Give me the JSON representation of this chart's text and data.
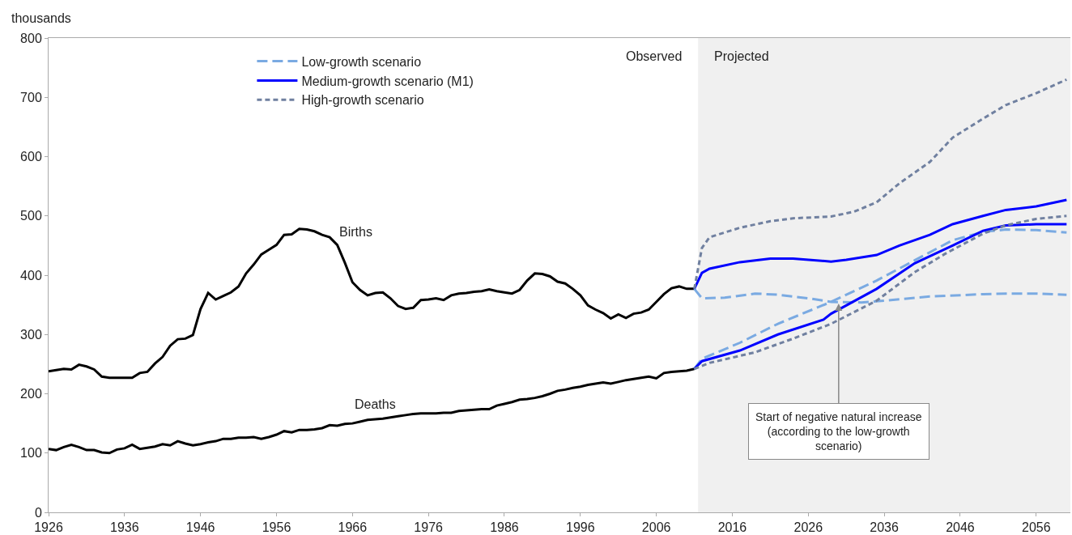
{
  "chart_data": {
    "type": "line",
    "ylabel": "thousands",
    "xlim": [
      1926,
      2060.5
    ],
    "xticks": [
      1926,
      1936,
      1946,
      1956,
      1966,
      1976,
      1986,
      1996,
      2006,
      2016,
      2026,
      2036,
      2046,
      2056
    ],
    "ylim": [
      0,
      800
    ],
    "yticks": [
      0,
      100,
      200,
      300,
      400,
      500,
      600,
      700,
      800
    ],
    "grid": false,
    "legend": "top left",
    "series": [
      {
        "name": "Births",
        "color": "#000000",
        "line_style": "solid",
        "x": [
          1926,
          1927,
          1928,
          1929,
          1930,
          1931,
          1932,
          1933,
          1934,
          1935,
          1936,
          1937,
          1938,
          1939,
          1940,
          1941,
          1942,
          1943,
          1944,
          1945,
          1946,
          1947,
          1948,
          1949,
          1950,
          1951,
          1952,
          1953,
          1954,
          1955,
          1956,
          1957,
          1958,
          1959,
          1960,
          1961,
          1962,
          1963,
          1964,
          1965,
          1966,
          1967,
          1968,
          1969,
          1970,
          1971,
          1972,
          1973,
          1974,
          1975,
          1976,
          1977,
          1978,
          1979,
          1980,
          1981,
          1982,
          1983,
          1984,
          1985,
          1986,
          1987,
          1988,
          1989,
          1990,
          1991,
          1992,
          1993,
          1994,
          1995,
          1996,
          1997,
          1998,
          1999,
          2000,
          2001,
          2002,
          2003,
          2004,
          2005,
          2006,
          2007,
          2008,
          2009,
          2010,
          2011
        ],
        "values": [
          238,
          240,
          242,
          241,
          249,
          246,
          241,
          229,
          227,
          227,
          227,
          227,
          235,
          237,
          251,
          262,
          281,
          292,
          293,
          299,
          343,
          370,
          359,
          365,
          371,
          381,
          403,
          418,
          435,
          443,
          451,
          468,
          469,
          478,
          477,
          474,
          468,
          464,
          451,
          421,
          388,
          375,
          366,
          370,
          371,
          361,
          348,
          343,
          345,
          358,
          359,
          361,
          358,
          366,
          369,
          370,
          372,
          373,
          376,
          373,
          371,
          369,
          375,
          391,
          403,
          402,
          398,
          389,
          386,
          377,
          366,
          349,
          342,
          336,
          327,
          334,
          328,
          335,
          337,
          342,
          355,
          368,
          378,
          381,
          377,
          377
        ]
      },
      {
        "name": "Deaths",
        "color": "#000000",
        "line_style": "solid",
        "x": [
          1926,
          1927,
          1928,
          1929,
          1930,
          1931,
          1932,
          1933,
          1934,
          1935,
          1936,
          1937,
          1938,
          1939,
          1940,
          1941,
          1942,
          1943,
          1944,
          1945,
          1946,
          1947,
          1948,
          1949,
          1950,
          1951,
          1952,
          1953,
          1954,
          1955,
          1956,
          1957,
          1958,
          1959,
          1960,
          1961,
          1962,
          1963,
          1964,
          1965,
          1966,
          1967,
          1968,
          1969,
          1970,
          1971,
          1972,
          1973,
          1974,
          1975,
          1976,
          1977,
          1978,
          1979,
          1980,
          1981,
          1982,
          1983,
          1984,
          1985,
          1986,
          1987,
          1988,
          1989,
          1990,
          1991,
          1992,
          1993,
          1994,
          1995,
          1996,
          1997,
          1998,
          1999,
          2000,
          2001,
          2002,
          2003,
          2004,
          2005,
          2006,
          2007,
          2008,
          2009,
          2010,
          2011
        ],
        "values": [
          107,
          105,
          110,
          114,
          110,
          105,
          105,
          101,
          100,
          106,
          108,
          114,
          107,
          109,
          111,
          115,
          113,
          120,
          116,
          113,
          115,
          118,
          120,
          124,
          124,
          126,
          126,
          127,
          124,
          127,
          131,
          137,
          135,
          139,
          139,
          140,
          142,
          147,
          146,
          149,
          150,
          153,
          156,
          157,
          158,
          160,
          162,
          164,
          166,
          167,
          167,
          167,
          168,
          168,
          171,
          172,
          173,
          174,
          174,
          180,
          183,
          186,
          190,
          191,
          193,
          196,
          200,
          205,
          207,
          210,
          212,
          215,
          217,
          219,
          217,
          220,
          223,
          225,
          227,
          229,
          226,
          235,
          237,
          238,
          239,
          242
        ]
      },
      {
        "name": "Low-growth scenario",
        "color": "#7aaae2",
        "line_style": "dashed",
        "x": [
          2011,
          2012,
          2015,
          2019,
          2022,
          2026,
          2029,
          2033,
          2036,
          2042,
          2049,
          2052,
          2056,
          2060
        ],
        "values": [
          377,
          361,
          362,
          369,
          367,
          361,
          355,
          354,
          357,
          364,
          368,
          369,
          369,
          367
        ]
      },
      {
        "name": "Medium-growth scenario (M1)",
        "color": "#0000ff",
        "line_style": "solid",
        "x": [
          2011,
          2012,
          2013,
          2017,
          2021,
          2024,
          2029,
          2031,
          2035,
          2038,
          2042,
          2045,
          2049,
          2052,
          2056,
          2060
        ],
        "values": [
          377,
          404,
          411,
          422,
          428,
          428,
          423,
          426,
          434,
          450,
          468,
          486,
          500,
          510,
          516,
          527
        ]
      },
      {
        "name": "High-growth scenario",
        "color": "#7080a0",
        "line_style": "dotted",
        "x": [
          2011,
          2012,
          2013,
          2017,
          2021,
          2024,
          2029,
          2032,
          2035,
          2038,
          2042,
          2045,
          2049,
          2052,
          2056,
          2060
        ],
        "values": [
          377,
          446,
          464,
          480,
          491,
          496,
          499,
          507,
          523,
          555,
          591,
          632,
          664,
          687,
          707,
          730
        ]
      },
      {
        "color": "#7aaae2",
        "line_style": "dashed",
        "x": [
          2011,
          2012,
          2017,
          2022,
          2029,
          2035,
          2040,
          2045,
          2049,
          2052,
          2056,
          2060
        ],
        "values": [
          242,
          259,
          286,
          318,
          355,
          391,
          425,
          459,
          473,
          477,
          476,
          472
        ]
      },
      {
        "color": "#0000ff",
        "line_style": "solid",
        "x": [
          2011,
          2012,
          2017,
          2022,
          2028,
          2029,
          2035,
          2040,
          2045,
          2049,
          2052,
          2056,
          2060
        ],
        "values": [
          242,
          255,
          273,
          300,
          325,
          335,
          377,
          420,
          450,
          475,
          484,
          486,
          486
        ]
      },
      {
        "color": "#7080a0",
        "line_style": "dotted",
        "x": [
          2011,
          2013,
          2019,
          2024,
          2029,
          2035,
          2040,
          2044,
          2049,
          2052,
          2056,
          2060
        ],
        "values": [
          242,
          252,
          270,
          293,
          318,
          357,
          405,
          436,
          470,
          484,
          495,
          500
        ]
      }
    ],
    "bands": [
      {
        "axis": "x",
        "from": 2011.5,
        "to": 2060.5,
        "label": "Projected",
        "color": "#f0f0f0"
      }
    ],
    "annotations": [
      "Observed",
      {
        "text": "Start of negative natural increase\n(according to the low-growth\nscenario)",
        "x": 2030,
        "y": 355
      }
    ]
  }
}
